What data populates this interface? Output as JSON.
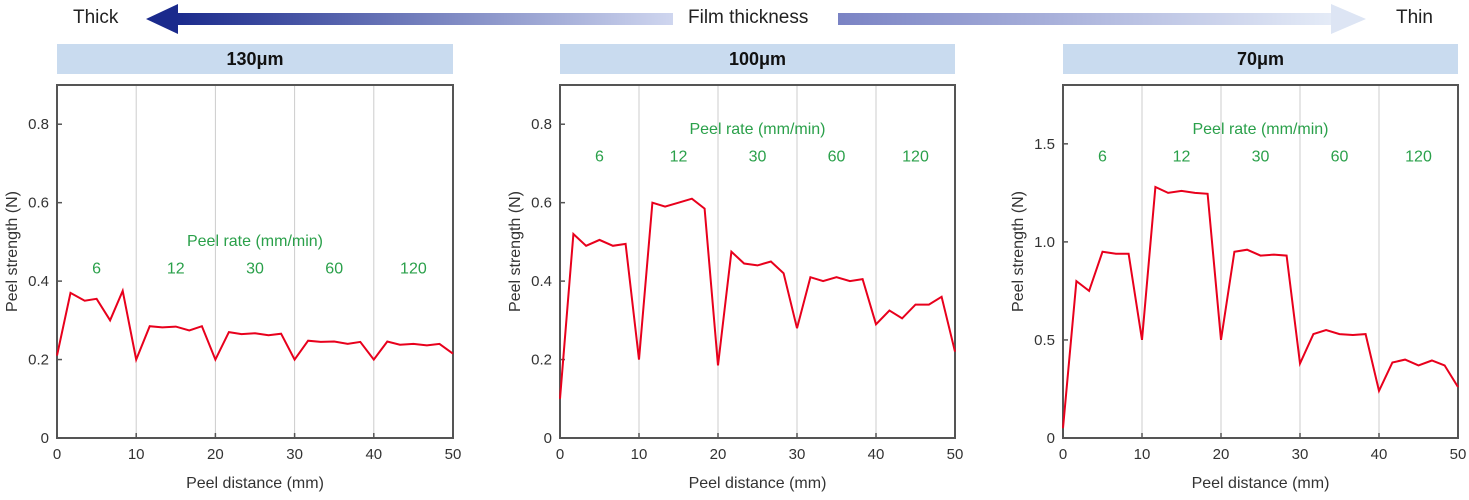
{
  "header": {
    "left_label": "Thick",
    "center_label": "Film thickness",
    "right_label": "Thin",
    "arrow_colors": {
      "dark": "#1a2a8c",
      "light": "#e0e8f6"
    }
  },
  "colors": {
    "line": "#e8001c",
    "annotation": "#2aa04a",
    "banner": "#c9dbef",
    "frame": "#555555",
    "grid": "#cccccc"
  },
  "chart_data": [
    {
      "type": "line",
      "title": "130μm",
      "xlabel": "Peel distance (mm)",
      "ylabel": "Peel strength (N)",
      "xlim": [
        0,
        50
      ],
      "ylim": [
        0,
        0.9
      ],
      "xticks": [
        0,
        10,
        20,
        30,
        40,
        50
      ],
      "xtick_labels": [
        "0",
        "10",
        "20",
        "30",
        "40",
        "50"
      ],
      "yticks": [
        0,
        0.2,
        0.4,
        0.6,
        0.8
      ],
      "ytick_labels": [
        "0",
        "0.2",
        "0.4",
        "0.6",
        "0.8"
      ],
      "vgrid": [
        10,
        20,
        30,
        40
      ],
      "annotation": {
        "label": "Peel rate (mm/min)",
        "label_y": 0.505,
        "rate_y": 0.435,
        "rates": [
          "6",
          "12",
          "30",
          "60",
          "120"
        ]
      },
      "series": [
        {
          "name": "Peel strength",
          "x": [
            0,
            1.7,
            3.5,
            5,
            6.7,
            8.3,
            10,
            11.7,
            13.3,
            15,
            16.7,
            18.3,
            20,
            21.7,
            23.3,
            25,
            26.7,
            28.3,
            30,
            31.7,
            33.3,
            35,
            36.7,
            38.3,
            40,
            41.7,
            43.3,
            45,
            46.7,
            48.3,
            50
          ],
          "y": [
            0.21,
            0.37,
            0.35,
            0.355,
            0.3,
            0.375,
            0.2,
            0.285,
            0.282,
            0.284,
            0.274,
            0.285,
            0.2,
            0.27,
            0.265,
            0.267,
            0.262,
            0.266,
            0.2,
            0.248,
            0.245,
            0.246,
            0.24,
            0.245,
            0.2,
            0.246,
            0.238,
            0.24,
            0.236,
            0.24,
            0.215
          ]
        }
      ]
    },
    {
      "type": "line",
      "title": "100μm",
      "xlabel": "Peel distance (mm)",
      "ylabel": "Peel strength (N)",
      "xlim": [
        0,
        50
      ],
      "ylim": [
        0,
        0.9
      ],
      "xticks": [
        0,
        10,
        20,
        30,
        40,
        50
      ],
      "xtick_labels": [
        "0",
        "10",
        "20",
        "30",
        "40",
        "50"
      ],
      "yticks": [
        0,
        0.2,
        0.4,
        0.6,
        0.8
      ],
      "ytick_labels": [
        "0",
        "0.2",
        "0.4",
        "0.6",
        "0.8"
      ],
      "vgrid": [
        10,
        20,
        30,
        40
      ],
      "annotation": {
        "label": "Peel rate (mm/min)",
        "label_y": 0.79,
        "rate_y": 0.72,
        "rates": [
          "6",
          "12",
          "30",
          "60",
          "120"
        ]
      },
      "series": [
        {
          "name": "Peel strength",
          "x": [
            0,
            1.7,
            3.3,
            5,
            6.7,
            8.3,
            10,
            11.7,
            13.3,
            15,
            16.7,
            18.3,
            20,
            21.7,
            23.3,
            25,
            26.7,
            28.3,
            30,
            31.7,
            33.3,
            35,
            36.7,
            38.3,
            40,
            41.7,
            43.3,
            45,
            46.7,
            48.3,
            50
          ],
          "y": [
            0.1,
            0.52,
            0.49,
            0.505,
            0.49,
            0.495,
            0.2,
            0.6,
            0.59,
            0.6,
            0.61,
            0.585,
            0.185,
            0.475,
            0.445,
            0.44,
            0.45,
            0.42,
            0.28,
            0.41,
            0.4,
            0.41,
            0.4,
            0.405,
            0.29,
            0.325,
            0.305,
            0.34,
            0.34,
            0.36,
            0.22
          ]
        }
      ]
    },
    {
      "type": "line",
      "title": "70μm",
      "xlabel": "Peel distance (mm)",
      "ylabel": "Peel strength (N)",
      "xlim": [
        0,
        50
      ],
      "ylim": [
        0,
        1.8
      ],
      "xticks": [
        0,
        10,
        20,
        30,
        40,
        50
      ],
      "xtick_labels": [
        "0",
        "10",
        "20",
        "30",
        "40",
        "50"
      ],
      "yticks": [
        0,
        0.5,
        1.0,
        1.5
      ],
      "ytick_labels": [
        "0",
        "0.5",
        "1.0",
        "1.5"
      ],
      "vgrid": [
        10,
        20,
        30,
        40
      ],
      "annotation": {
        "label": "Peel rate (mm/min)",
        "label_y": 1.58,
        "rate_y": 1.44,
        "rates": [
          "6",
          "12",
          "30",
          "60",
          "120"
        ]
      },
      "series": [
        {
          "name": "Peel strength",
          "x": [
            0,
            1.7,
            3.3,
            5,
            6.7,
            8.3,
            10,
            11.7,
            13.3,
            15,
            16.7,
            18.3,
            20,
            21.7,
            23.3,
            25,
            26.7,
            28.3,
            30,
            31.7,
            33.3,
            35,
            36.7,
            38.3,
            40,
            41.7,
            43.3,
            45,
            46.7,
            48.3,
            50
          ],
          "y": [
            0.05,
            0.8,
            0.75,
            0.95,
            0.94,
            0.94,
            0.5,
            1.28,
            1.25,
            1.26,
            1.25,
            1.245,
            0.5,
            0.95,
            0.96,
            0.93,
            0.935,
            0.93,
            0.38,
            0.53,
            0.55,
            0.53,
            0.525,
            0.53,
            0.24,
            0.385,
            0.4,
            0.37,
            0.395,
            0.37,
            0.26
          ]
        }
      ]
    }
  ]
}
